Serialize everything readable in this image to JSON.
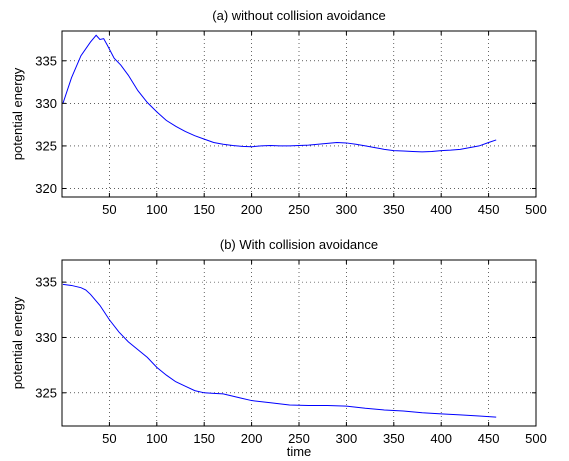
{
  "chart_data": [
    {
      "type": "line",
      "title": "(a) without collision avoidance",
      "xlabel": "",
      "ylabel": "potential energy",
      "xlim": [
        0,
        500
      ],
      "ylim": [
        319,
        338.5
      ],
      "xticks": [
        50,
        100,
        150,
        200,
        250,
        300,
        350,
        400,
        450,
        500
      ],
      "yticks": [
        320,
        325,
        330,
        335
      ],
      "grid": true,
      "color": "#0000ff",
      "x": [
        1,
        10,
        20,
        30,
        36,
        40,
        44,
        48,
        55,
        62,
        70,
        80,
        90,
        100,
        110,
        120,
        130,
        140,
        150,
        160,
        170,
        180,
        190,
        200,
        210,
        220,
        230,
        240,
        250,
        260,
        270,
        280,
        290,
        300,
        310,
        320,
        330,
        340,
        350,
        360,
        370,
        380,
        390,
        400,
        410,
        420,
        430,
        440,
        450,
        458
      ],
      "y": [
        330.0,
        333.0,
        335.6,
        337.2,
        338.0,
        337.5,
        337.6,
        336.8,
        335.3,
        334.5,
        333.3,
        331.5,
        330.1,
        329.0,
        328.0,
        327.3,
        326.7,
        326.2,
        325.8,
        325.4,
        325.2,
        325.05,
        324.95,
        324.9,
        325.0,
        325.05,
        325.0,
        325.0,
        325.05,
        325.1,
        325.2,
        325.3,
        325.4,
        325.35,
        325.2,
        325.0,
        324.8,
        324.6,
        324.45,
        324.4,
        324.35,
        324.3,
        324.35,
        324.45,
        324.5,
        324.6,
        324.8,
        325.0,
        325.4,
        325.7
      ]
    },
    {
      "type": "line",
      "title": "(b) With collision avoidance",
      "xlabel": "time",
      "ylabel": "potential energy",
      "xlim": [
        0,
        500
      ],
      "ylim": [
        322,
        337
      ],
      "xticks": [
        50,
        100,
        150,
        200,
        250,
        300,
        350,
        400,
        450,
        500
      ],
      "yticks": [
        325,
        330,
        335
      ],
      "grid": true,
      "color": "#0000ff",
      "x": [
        1,
        10,
        20,
        25,
        30,
        40,
        50,
        60,
        70,
        80,
        90,
        100,
        110,
        120,
        130,
        140,
        150,
        160,
        170,
        180,
        190,
        200,
        220,
        240,
        260,
        280,
        300,
        320,
        340,
        360,
        380,
        400,
        420,
        440,
        458
      ],
      "y": [
        334.8,
        334.7,
        334.5,
        334.3,
        333.9,
        332.9,
        331.6,
        330.5,
        329.6,
        328.9,
        328.2,
        327.3,
        326.6,
        326.0,
        325.6,
        325.2,
        325.0,
        324.95,
        324.9,
        324.7,
        324.5,
        324.3,
        324.1,
        323.9,
        323.85,
        323.85,
        323.8,
        323.6,
        323.45,
        323.35,
        323.2,
        323.1,
        323.0,
        322.9,
        322.8
      ]
    }
  ]
}
